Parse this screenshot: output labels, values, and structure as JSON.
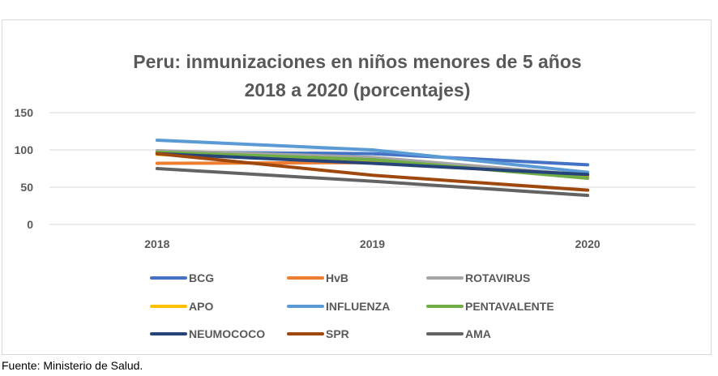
{
  "chart_data": {
    "type": "line",
    "title_lines": [
      "Peru: inmunizaciones  en niños menores de 5 años",
      "2018 a 2020 (porcentajes)"
    ],
    "categories": [
      "2018",
      "2019",
      "2020"
    ],
    "y_ticks": [
      "0",
      "50",
      "100",
      "150"
    ],
    "ylim": [
      0,
      150
    ],
    "grid": true,
    "legend_position": "bottom",
    "series": [
      {
        "name": "BCG",
        "color": "#4472C4",
        "values": [
          97,
          95,
          80
        ]
      },
      {
        "name": "HvB",
        "color": "#ED7D31",
        "values": [
          82,
          83,
          67
        ]
      },
      {
        "name": "ROTAVIRUS",
        "color": "#A5A5A5",
        "values": [
          99,
          90,
          66
        ]
      },
      {
        "name": "APO",
        "color": "#FFC000",
        "values": [
          94,
          86,
          63
        ]
      },
      {
        "name": "INFLUENZA",
        "color": "#5B9BD5",
        "values": [
          113,
          100,
          70
        ]
      },
      {
        "name": "PENTAVALENTE",
        "color": "#70AD47",
        "values": [
          97,
          87,
          62
        ]
      },
      {
        "name": "NEUMOCOCO",
        "color": "#264478",
        "values": [
          95,
          82,
          67
        ]
      },
      {
        "name": "SPR",
        "color": "#9E480E",
        "values": [
          95,
          66,
          46
        ]
      },
      {
        "name": "AMA",
        "color": "#636363",
        "values": [
          75,
          58,
          39
        ]
      }
    ]
  },
  "source_note": "Fuente: Ministerio de Salud."
}
